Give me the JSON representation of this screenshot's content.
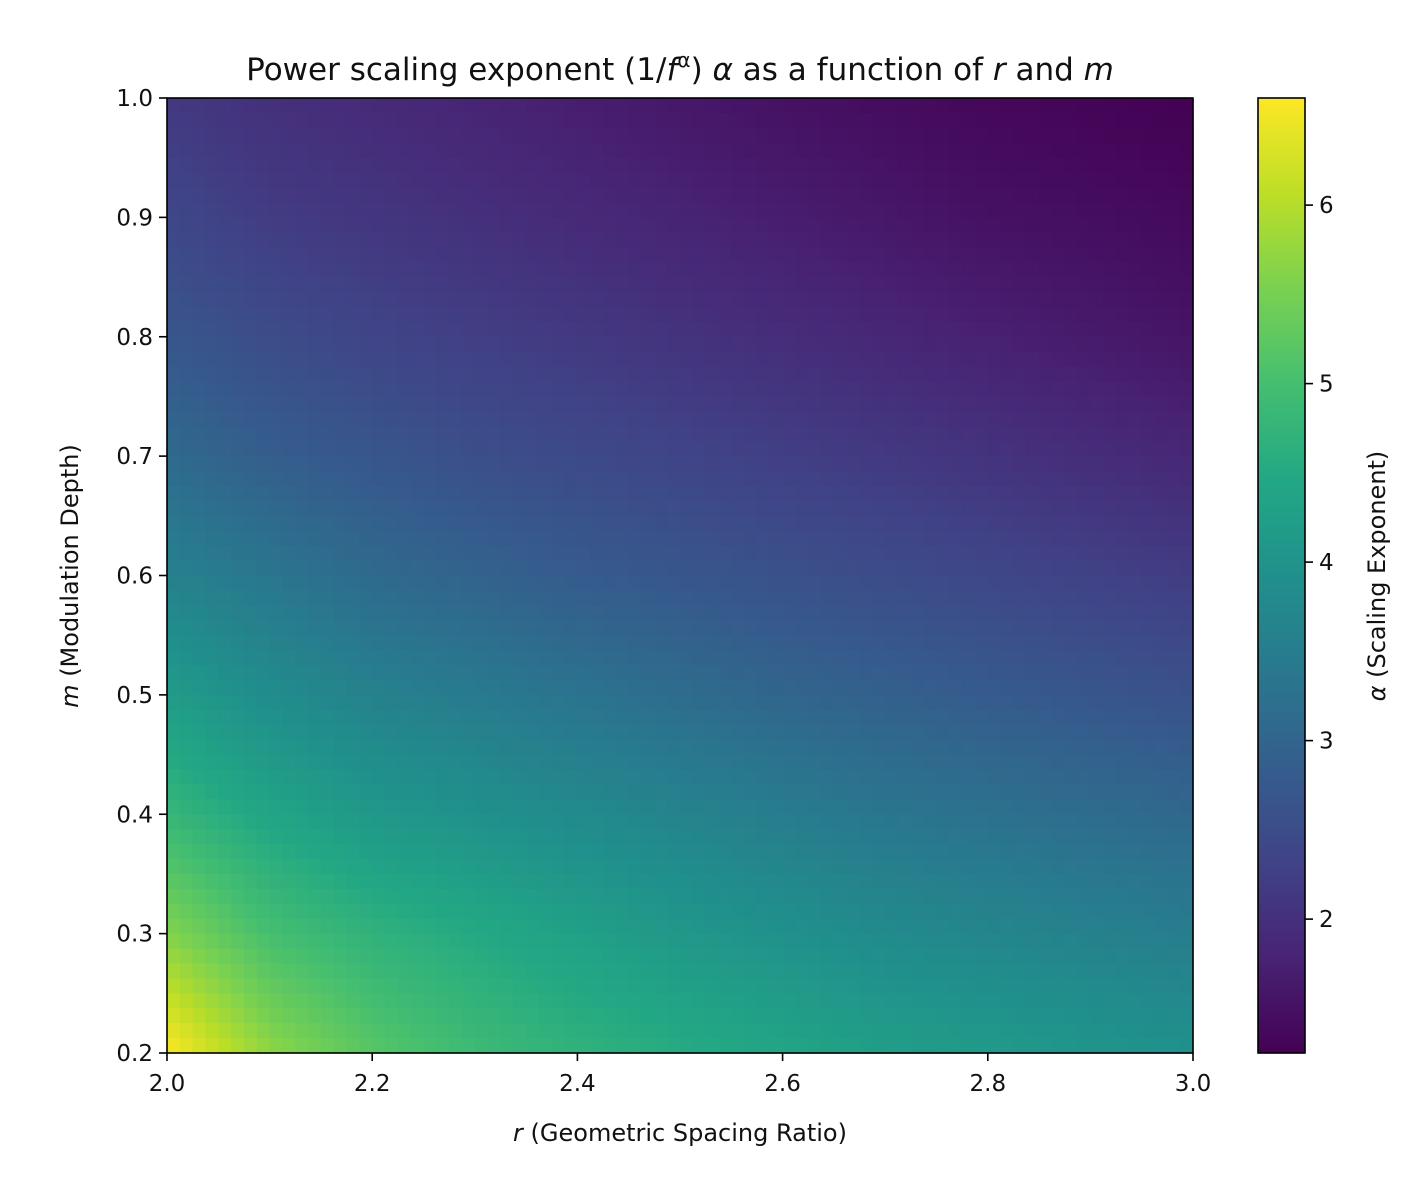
{
  "chart_data": {
    "type": "heatmap",
    "title": {
      "prefix": "Power scaling exponent (1/",
      "f": "f",
      "sup": "α",
      "mid1": ") ",
      "alpha": "α",
      "mid2": " as a function of ",
      "r": "r",
      "mid3": " and ",
      "m": "m"
    },
    "xlabel": {
      "var": "r",
      "text": " (Geometric Spacing Ratio)"
    },
    "ylabel": {
      "var": "m",
      "text": " (Modulation Depth)"
    },
    "colorbar_label": {
      "var": "α",
      "text": " (Scaling Exponent)"
    },
    "xlim": [
      2.0,
      3.0
    ],
    "ylim": [
      0.2,
      1.0
    ],
    "x_ticks": [
      "2.0",
      "2.2",
      "2.4",
      "2.6",
      "2.8",
      "3.0"
    ],
    "y_ticks": [
      "0.2",
      "0.3",
      "0.4",
      "0.5",
      "0.6",
      "0.7",
      "0.8",
      "0.9",
      "1.0"
    ],
    "colorbar_ticks": [
      "2",
      "3",
      "4",
      "5",
      "6"
    ],
    "color_range": [
      1.25,
      6.6
    ],
    "colormap": "viridis",
    "x": [
      2.0,
      2.1,
      2.2,
      2.3,
      2.4,
      2.5,
      2.6,
      2.7,
      2.8,
      2.9,
      3.0
    ],
    "y": [
      0.2,
      0.3,
      0.4,
      0.5,
      0.6,
      0.7,
      0.8,
      0.9,
      1.0
    ],
    "z": [
      [
        6.6,
        5.7,
        5.2,
        4.9,
        4.7,
        4.55,
        4.4,
        4.25,
        4.15,
        4.05,
        3.95
      ],
      [
        5.6,
        5.0,
        4.7,
        4.5,
        4.3,
        4.1,
        3.95,
        3.8,
        3.7,
        3.6,
        3.5
      ],
      [
        4.8,
        4.4,
        4.1,
        3.95,
        3.8,
        3.65,
        3.5,
        3.35,
        3.25,
        3.15,
        3.05
      ],
      [
        4.2,
        3.85,
        3.6,
        3.45,
        3.3,
        3.15,
        3.0,
        2.9,
        2.8,
        2.7,
        2.6
      ],
      [
        3.6,
        3.35,
        3.1,
        2.95,
        2.8,
        2.7,
        2.6,
        2.5,
        2.4,
        2.3,
        2.2
      ],
      [
        3.1,
        2.85,
        2.7,
        2.55,
        2.45,
        2.35,
        2.25,
        2.15,
        2.05,
        1.95,
        1.85
      ],
      [
        2.7,
        2.5,
        2.35,
        2.25,
        2.15,
        2.05,
        1.95,
        1.85,
        1.75,
        1.65,
        1.55
      ],
      [
        2.4,
        2.2,
        2.1,
        2.0,
        1.9,
        1.8,
        1.7,
        1.6,
        1.5,
        1.45,
        1.38
      ],
      [
        2.15,
        2.0,
        1.9,
        1.8,
        1.7,
        1.6,
        1.5,
        1.42,
        1.35,
        1.3,
        1.25
      ]
    ]
  }
}
